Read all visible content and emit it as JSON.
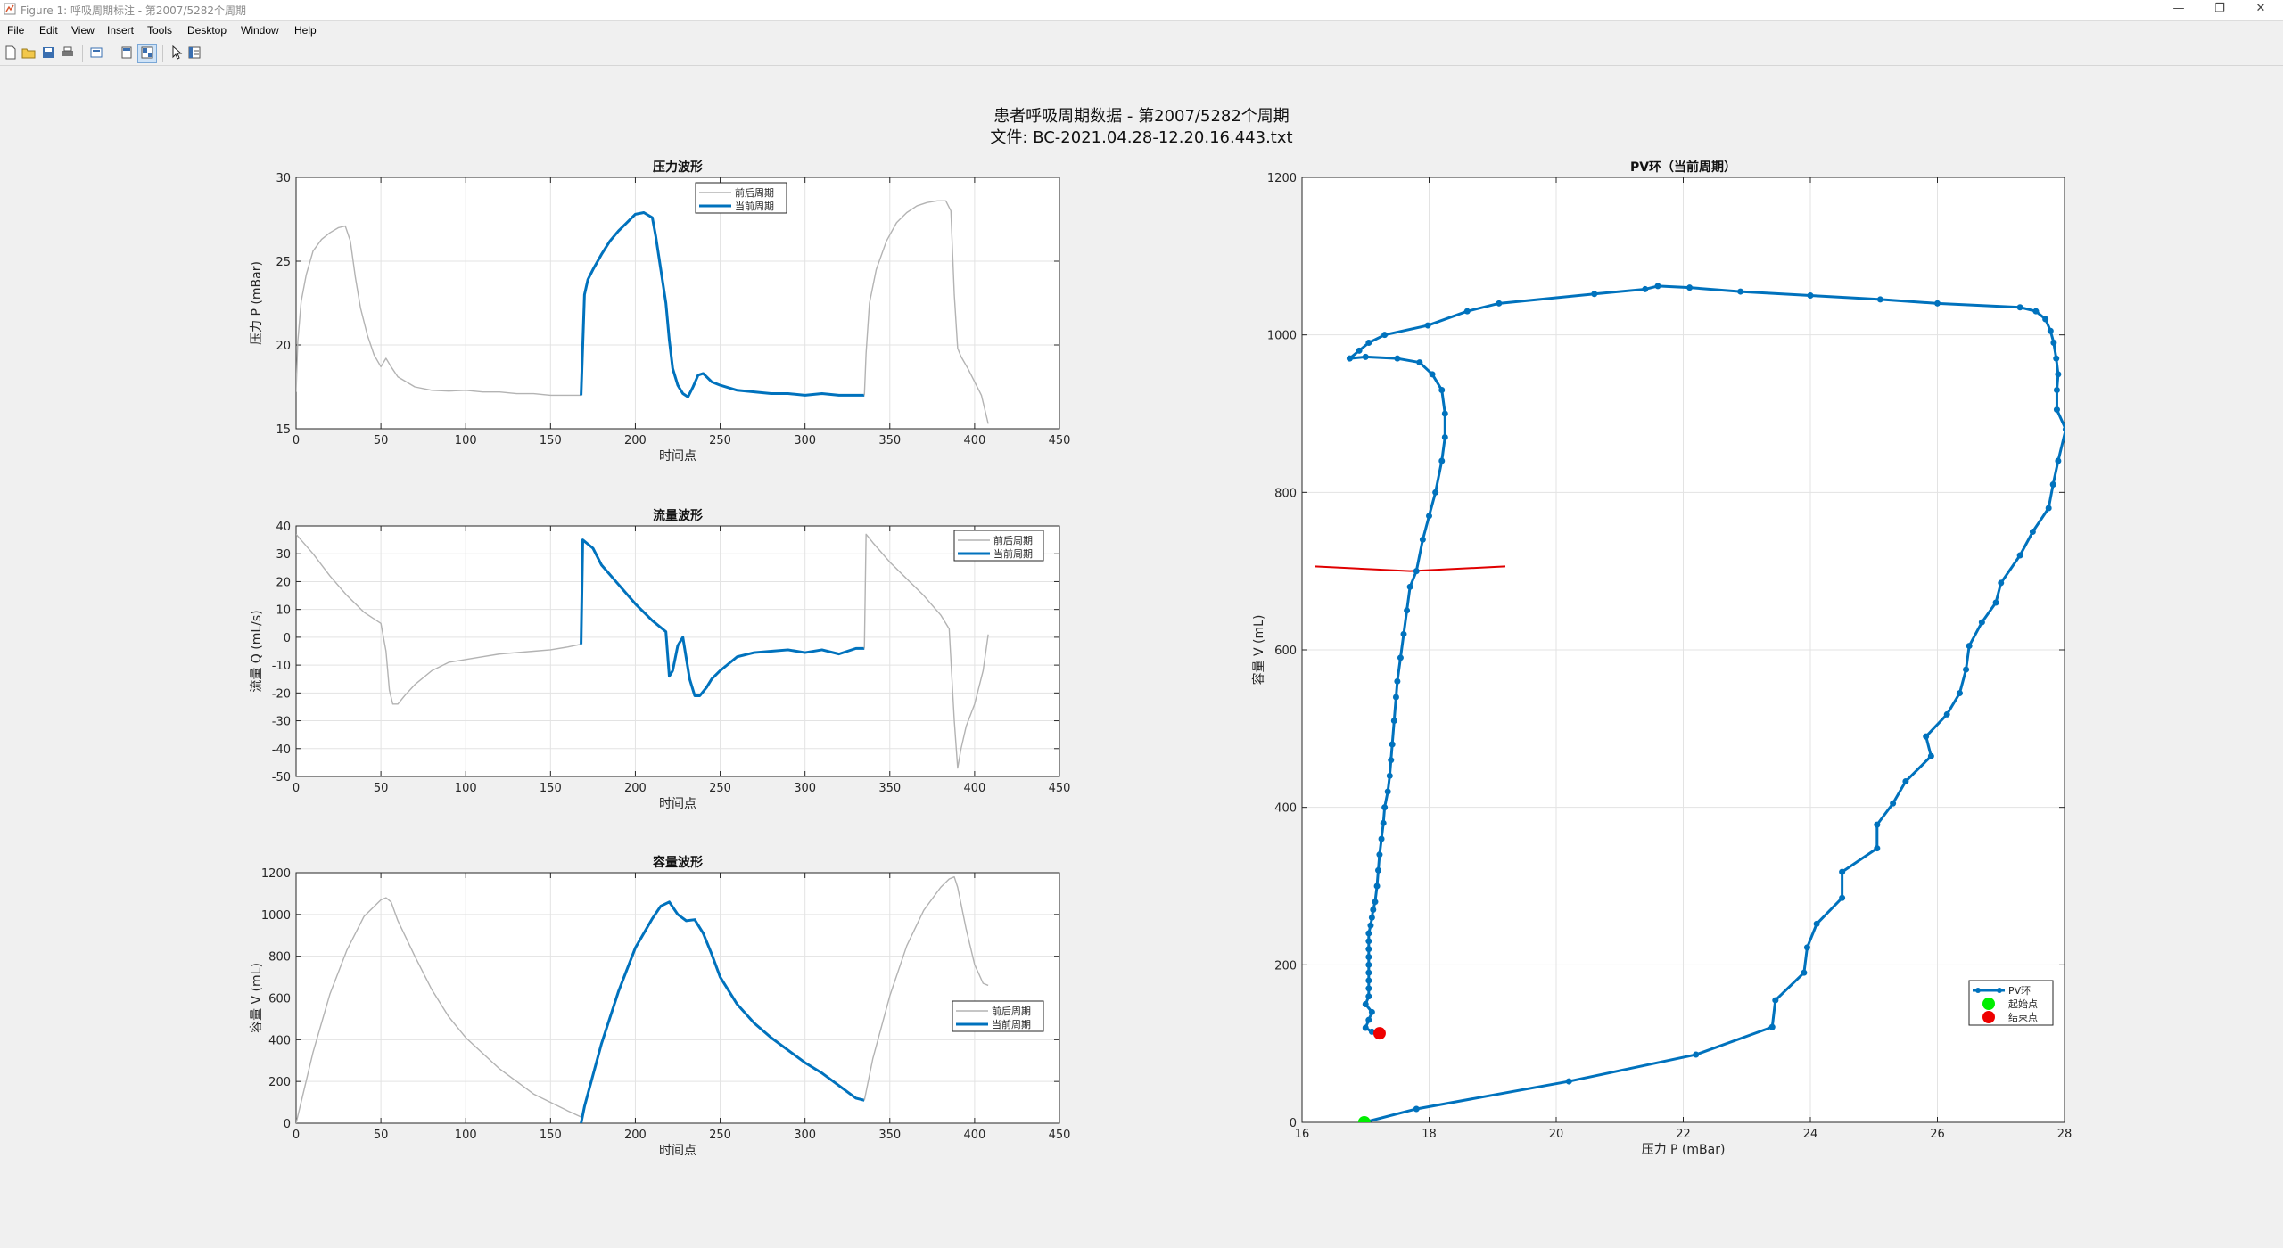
{
  "window": {
    "title": "Figure 1: 呼吸周期标注 - 第2007/5282个周期",
    "controls": [
      "—",
      "❐",
      "✕"
    ]
  },
  "menu": [
    "File",
    "Edit",
    "View",
    "Insert",
    "Tools",
    "Desktop",
    "Window",
    "Help"
  ],
  "toolbar": {
    "icons": [
      "new-figure-icon",
      "open-file-icon",
      "save-icon",
      "print-icon",
      "print-preview-icon",
      "hide-toolbar-icon",
      "dock-icon",
      "pointer-icon",
      "property-editor-icon"
    ]
  },
  "figure": {
    "title_line1": "患者呼吸周期数据 - 第2007/5282个周期",
    "title_line2": "文件: BC-2021.04.28-12.20.16.443.txt"
  },
  "colors": {
    "current": "#0072bd",
    "neighbor": "#b3b3b3",
    "marker": "#e00000",
    "start": "#00ee00",
    "end": "#ee0000"
  },
  "chart_data": [
    {
      "type": "line",
      "title": "压力波形",
      "xlabel": "时间点",
      "ylabel": "压力 P (mBar)",
      "xlim": [
        0,
        450
      ],
      "ylim": [
        15,
        30
      ],
      "xticks": [
        0,
        50,
        100,
        150,
        200,
        250,
        300,
        350,
        400,
        450
      ],
      "yticks": [
        15,
        20,
        25,
        30
      ],
      "legend": [
        "前后周期",
        "当前周期"
      ],
      "legend_position": "top-right",
      "grid": true,
      "series": [
        {
          "name": "前后周期",
          "role": "neighbor",
          "x": [
            0,
            1,
            3,
            6,
            10,
            15,
            20,
            25,
            29,
            32,
            35,
            38,
            42,
            46,
            50,
            53,
            56,
            60,
            65,
            70,
            80,
            90,
            100,
            110,
            120,
            130,
            140,
            150,
            160,
            168
          ],
          "y": [
            17.2,
            20.2,
            22.6,
            24.2,
            25.6,
            26.3,
            26.7,
            27.0,
            27.1,
            26.2,
            24.0,
            22.2,
            20.6,
            19.4,
            18.7,
            19.2,
            18.7,
            18.1,
            17.8,
            17.5,
            17.3,
            17.25,
            17.3,
            17.2,
            17.2,
            17.1,
            17.1,
            17.0,
            17.0,
            17.0
          ]
        },
        {
          "name": "当前周期",
          "role": "current",
          "x": [
            168,
            169,
            170,
            172,
            175,
            180,
            185,
            190,
            195,
            200,
            205,
            210,
            212,
            215,
            218,
            220,
            222,
            225,
            228,
            231,
            234,
            237,
            240,
            245,
            250,
            260,
            270,
            280,
            290,
            300,
            310,
            320,
            330,
            335
          ],
          "y": [
            17.0,
            20.0,
            23.0,
            23.9,
            24.5,
            25.4,
            26.2,
            26.8,
            27.3,
            27.8,
            27.9,
            27.6,
            26.5,
            24.5,
            22.5,
            20.3,
            18.6,
            17.6,
            17.1,
            16.9,
            17.5,
            18.2,
            18.3,
            17.8,
            17.6,
            17.3,
            17.2,
            17.1,
            17.1,
            17.0,
            17.1,
            17.0,
            17.0,
            17.0
          ]
        },
        {
          "name": "前后周期",
          "role": "neighbor",
          "x": [
            335,
            336,
            338,
            342,
            348,
            354,
            360,
            366,
            372,
            378,
            383,
            386,
            388,
            390,
            392,
            396,
            400,
            404,
            408
          ],
          "y": [
            17.0,
            19.5,
            22.5,
            24.5,
            26.2,
            27.3,
            27.9,
            28.3,
            28.5,
            28.6,
            28.6,
            28.0,
            23.0,
            19.8,
            19.3,
            18.6,
            17.8,
            17.0,
            15.3
          ]
        }
      ]
    },
    {
      "type": "line",
      "title": "流量波形",
      "xlabel": "时间点",
      "ylabel": "流量 Q (mL/s)",
      "xlim": [
        0,
        450
      ],
      "ylim": [
        -50,
        40
      ],
      "xticks": [
        0,
        50,
        100,
        150,
        200,
        250,
        300,
        350,
        400,
        450
      ],
      "yticks": [
        -50,
        -40,
        -30,
        -20,
        -10,
        0,
        10,
        20,
        30,
        40
      ],
      "legend": [
        "前后周期",
        "当前周期"
      ],
      "legend_position": "top-right",
      "grid": true,
      "series": [
        {
          "name": "前后周期",
          "role": "neighbor",
          "x": [
            0,
            10,
            20,
            30,
            40,
            50,
            53,
            55,
            57,
            60,
            64,
            70,
            80,
            90,
            100,
            110,
            120,
            130,
            140,
            150,
            160,
            168
          ],
          "y": [
            37,
            30,
            22,
            15,
            9,
            5,
            -5,
            -19,
            -24,
            -24,
            -21,
            -17,
            -12,
            -9,
            -8,
            -7,
            -6,
            -5.5,
            -5,
            -4.5,
            -3.5,
            -2.5
          ]
        },
        {
          "name": "当前周期",
          "role": "current",
          "x": [
            168,
            169,
            175,
            180,
            190,
            200,
            210,
            218,
            220,
            222,
            225,
            228,
            232,
            235,
            238,
            242,
            245,
            250,
            260,
            270,
            280,
            290,
            300,
            310,
            320,
            330,
            335
          ],
          "y": [
            -2.5,
            35,
            32,
            26,
            19,
            12,
            6,
            2,
            -14,
            -12,
            -3,
            0,
            -15,
            -21,
            -21,
            -18,
            -15,
            -12,
            -7,
            -5.5,
            -5,
            -4.5,
            -5.5,
            -4.5,
            -6,
            -4,
            -4
          ]
        },
        {
          "name": "前后周期",
          "role": "neighbor",
          "x": [
            335,
            336,
            340,
            350,
            360,
            370,
            380,
            385,
            388,
            390,
            392,
            395,
            400,
            405,
            408
          ],
          "y": [
            -4,
            37,
            34,
            27,
            21,
            15,
            8,
            3,
            -30,
            -47,
            -40,
            -32,
            -24,
            -12,
            1
          ]
        }
      ]
    },
    {
      "type": "line",
      "title": "容量波形",
      "xlabel": "时间点",
      "ylabel": "容量 V (mL)",
      "xlim": [
        0,
        450
      ],
      "ylim": [
        0,
        1200
      ],
      "xticks": [
        0,
        50,
        100,
        150,
        200,
        250,
        300,
        350,
        400,
        450
      ],
      "yticks": [
        0,
        200,
        400,
        600,
        800,
        1000,
        1200
      ],
      "legend": [
        "前后周期",
        "当前周期"
      ],
      "legend_position": "middle-right",
      "grid": true,
      "series": [
        {
          "name": "前后周期",
          "role": "neighbor",
          "x": [
            0,
            5,
            10,
            20,
            30,
            40,
            50,
            53,
            56,
            60,
            70,
            80,
            90,
            100,
            120,
            140,
            160,
            168
          ],
          "y": [
            0,
            170,
            340,
            620,
            830,
            990,
            1070,
            1080,
            1060,
            970,
            800,
            640,
            510,
            410,
            260,
            140,
            60,
            30
          ]
        },
        {
          "name": "当前周期",
          "role": "current",
          "x": [
            168,
            170,
            175,
            180,
            190,
            200,
            210,
            215,
            220,
            225,
            230,
            235,
            240,
            245,
            250,
            260,
            270,
            280,
            290,
            300,
            310,
            320,
            330,
            335
          ],
          "y": [
            0,
            80,
            230,
            380,
            630,
            840,
            980,
            1040,
            1060,
            1000,
            970,
            975,
            910,
            810,
            700,
            570,
            480,
            410,
            350,
            290,
            240,
            180,
            120,
            110
          ]
        },
        {
          "name": "前后周期",
          "role": "neighbor",
          "x": [
            335,
            340,
            350,
            360,
            370,
            380,
            385,
            388,
            390,
            395,
            400,
            405,
            408
          ],
          "y": [
            110,
            310,
            610,
            850,
            1020,
            1130,
            1170,
            1180,
            1130,
            930,
            760,
            670,
            660
          ]
        }
      ]
    },
    {
      "type": "scatter",
      "title": "PV环（当前周期）",
      "xlabel": "压力 P (mBar)",
      "ylabel": "容量 V (mL)",
      "xlim": [
        16,
        28
      ],
      "ylim": [
        0,
        1200
      ],
      "xticks": [
        16,
        18,
        20,
        22,
        24,
        26,
        28
      ],
      "yticks": [
        0,
        200,
        400,
        600,
        800,
        1000,
        1200
      ],
      "legend": [
        "PV环",
        "起始点",
        "结束点"
      ],
      "legend_position": "bottom-right",
      "grid": true,
      "series": [
        {
          "name": "PV环",
          "role": "current",
          "x": [
            16.98,
            17.8,
            20.2,
            22.2,
            23.4,
            23.45,
            23.9,
            23.95,
            24.1,
            24.5,
            24.5,
            25.05,
            25.05,
            25.3,
            25.5,
            25.9,
            25.82,
            26.15,
            26.35,
            26.45,
            26.5,
            26.7,
            26.92,
            27.0,
            27.3,
            27.5,
            27.75,
            27.82,
            27.9,
            28.02,
            27.88,
            27.88,
            27.9,
            27.87,
            27.83,
            27.78,
            27.7,
            27.55,
            27.3,
            26.0,
            25.1,
            24.0,
            22.9,
            22.1,
            21.6,
            21.4,
            20.6,
            19.1,
            18.6,
            17.98,
            17.3,
            17.05,
            16.9,
            16.75,
            17.0,
            17.5,
            17.85,
            18.05,
            18.2,
            18.25,
            18.25,
            18.2,
            18.1,
            18.0,
            17.9,
            17.8,
            17.7,
            17.65,
            17.6,
            17.55,
            17.5,
            17.48,
            17.45,
            17.42,
            17.4,
            17.38,
            17.35,
            17.3,
            17.28,
            17.25,
            17.22,
            17.2,
            17.18,
            17.15,
            17.12,
            17.1,
            17.08,
            17.05,
            17.05,
            17.05,
            17.05,
            17.05,
            17.05,
            17.05,
            17.05,
            17.05,
            17.0,
            17.1,
            17.05,
            17.0,
            17.1
          ],
          "y": [
            0,
            17,
            52,
            86,
            121,
            155,
            190,
            222,
            252,
            285,
            318,
            348,
            378,
            405,
            433,
            465,
            490,
            518,
            545,
            575,
            605,
            635,
            660,
            685,
            720,
            750,
            780,
            810,
            840,
            880,
            905,
            930,
            950,
            970,
            990,
            1005,
            1020,
            1030,
            1035,
            1040,
            1045,
            1050,
            1055,
            1060,
            1062,
            1058,
            1052,
            1040,
            1030,
            1012,
            1000,
            990,
            980,
            970,
            972,
            970,
            965,
            950,
            930,
            900,
            870,
            840,
            800,
            770,
            740,
            700,
            680,
            650,
            620,
            590,
            560,
            540,
            510,
            480,
            460,
            440,
            420,
            400,
            380,
            360,
            340,
            320,
            300,
            280,
            270,
            260,
            250,
            240,
            230,
            220,
            210,
            200,
            190,
            180,
            170,
            160,
            150,
            140,
            130,
            120,
            115
          ]
        },
        {
          "name": "起始点",
          "role": "start",
          "x": [
            16.98
          ],
          "y": [
            0
          ]
        },
        {
          "name": "结束点",
          "role": "end",
          "x": [
            17.22
          ],
          "y": [
            113
          ]
        }
      ],
      "annotation": {
        "type": "line",
        "x": [
          16.2,
          17.7,
          19.2
        ],
        "y": [
          706,
          700,
          706
        ]
      }
    }
  ]
}
